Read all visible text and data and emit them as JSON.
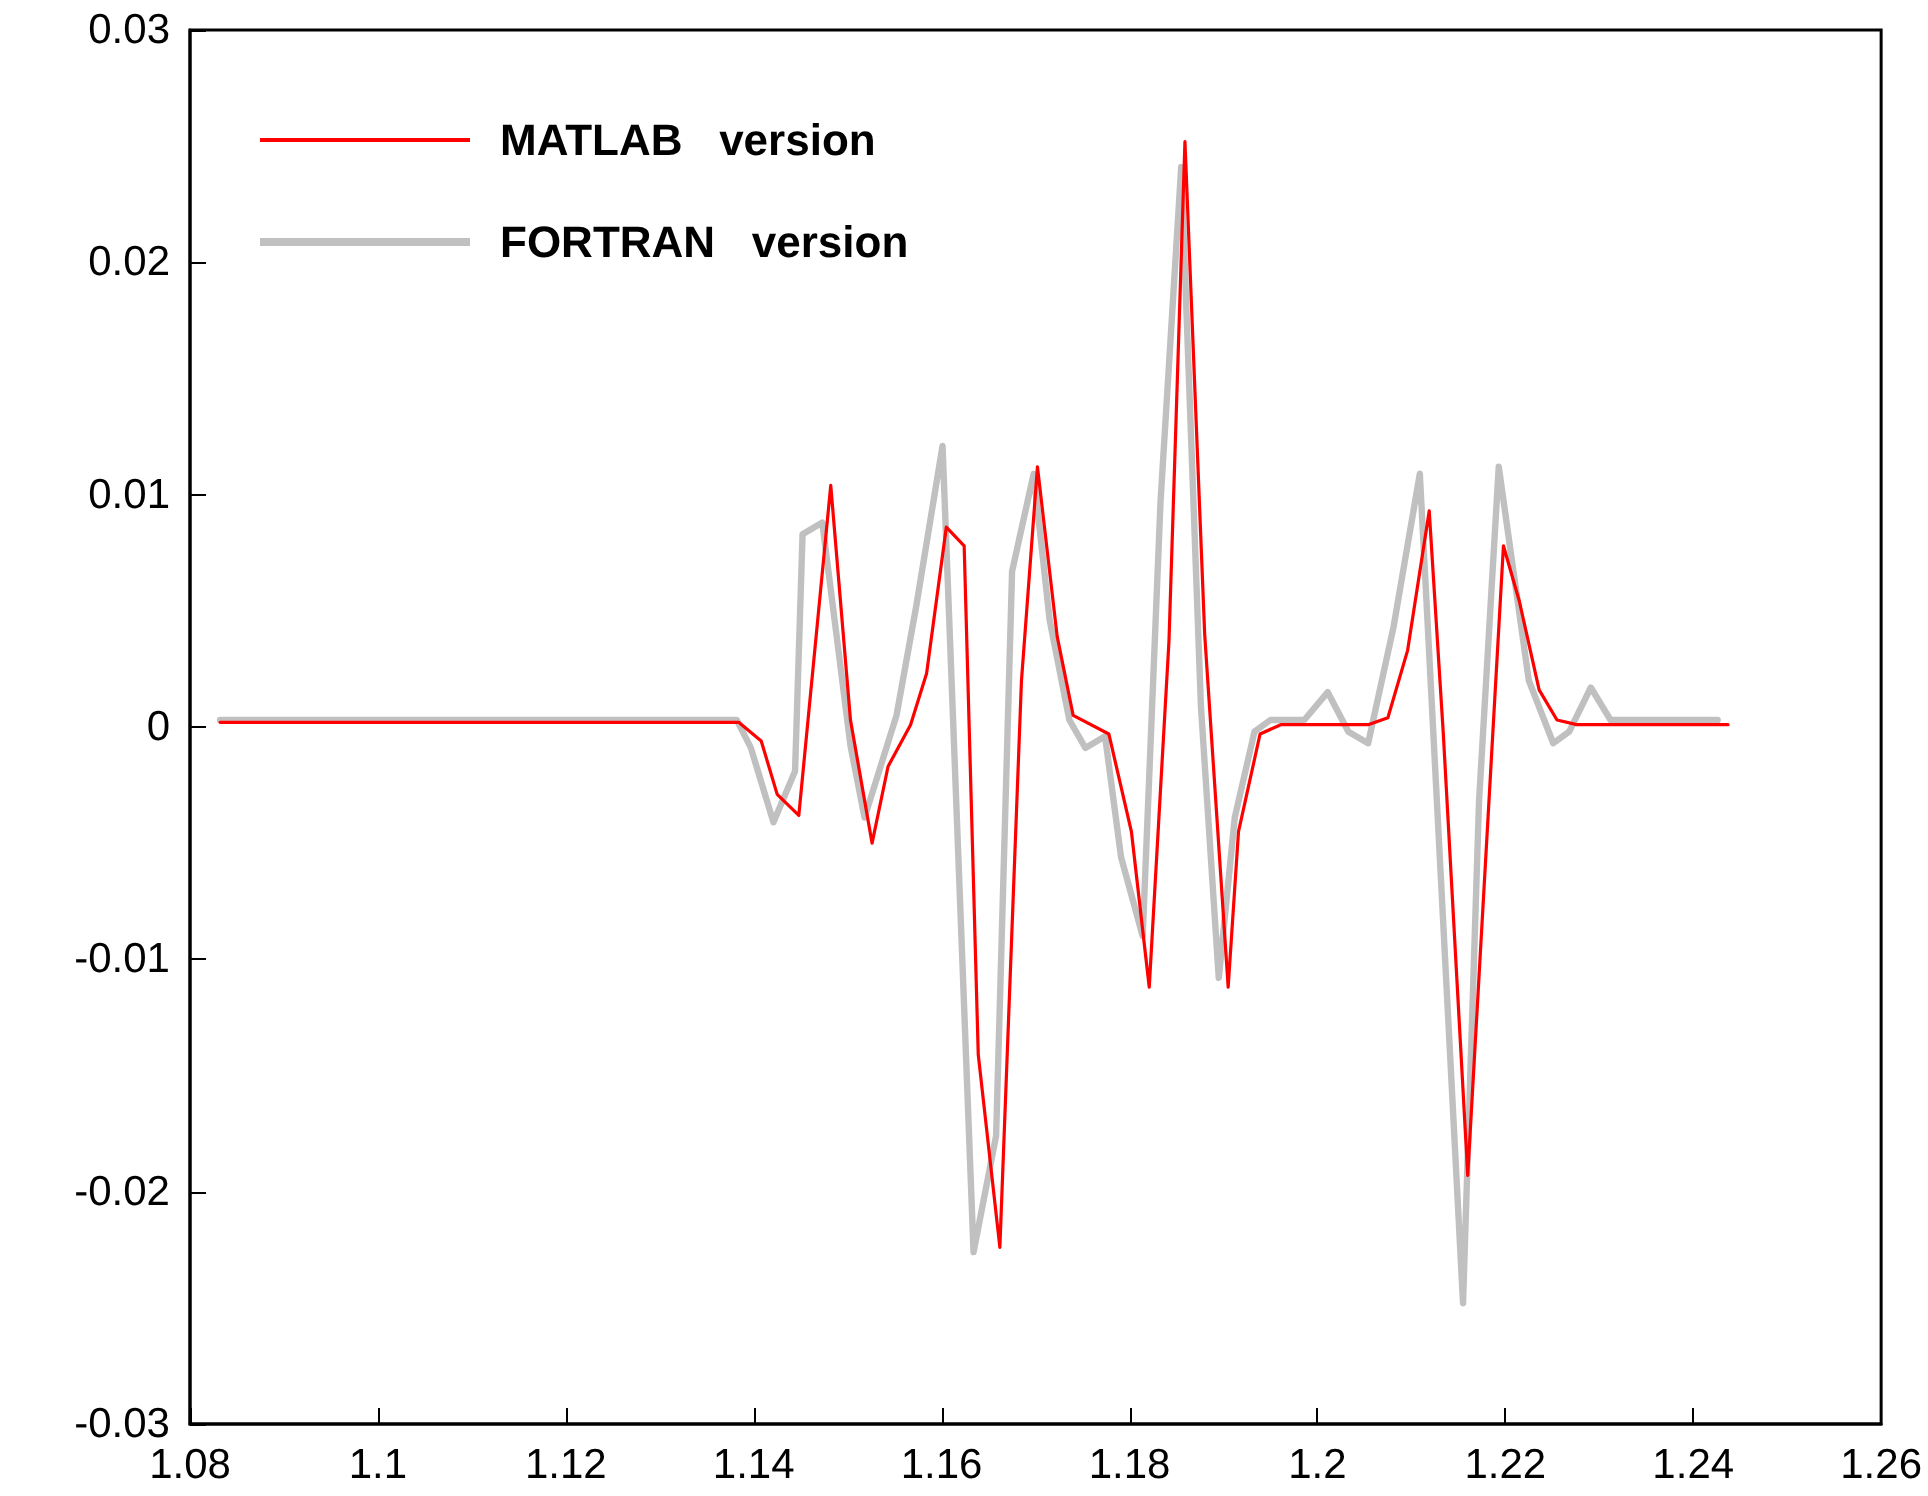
{
  "chart_data": {
    "type": "line",
    "marker": "none",
    "legend": "top left",
    "grid": false,
    "xlim": [
      1.08,
      1.26
    ],
    "xticks": [
      1.08,
      1.1,
      1.12,
      1.14,
      1.16,
      1.18,
      1.2,
      1.22,
      1.24,
      1.26
    ],
    "ylim": [
      -0.03,
      0.03
    ],
    "yticks": [
      -0.03,
      -0.02,
      -0.01,
      0,
      0.01,
      0.02,
      0.03
    ],
    "series": [
      {
        "name": "MATLAB   version",
        "color": "#ff0000",
        "x": [
          1.0832,
          1.1384,
          1.1408,
          1.1425,
          1.1448,
          1.1482,
          1.1503,
          1.1526,
          1.1543,
          1.1567,
          1.1584,
          1.1605,
          1.1624,
          1.1639,
          1.1662,
          1.1685,
          1.1702,
          1.1723,
          1.174,
          1.1778,
          1.1802,
          1.1821,
          1.1842,
          1.1859,
          1.188,
          1.1905,
          1.1916,
          1.1939,
          1.1961,
          1.2054,
          1.2075,
          1.2096,
          1.2119,
          1.2134,
          1.216,
          1.2198,
          1.2215,
          1.2236,
          1.2255,
          1.2276,
          1.2437
        ],
        "values": [
          0.0002,
          0.0002,
          -0.0006,
          -0.0029,
          -0.0038,
          0.0104,
          0.0003,
          -0.005,
          -0.0017,
          0.0001,
          0.0023,
          0.0086,
          0.0078,
          -0.0141,
          -0.0224,
          0.002,
          0.0112,
          0.0039,
          0.0005,
          -0.0003,
          -0.0045,
          -0.0112,
          0.0037,
          0.0252,
          0.004,
          -0.0112,
          -0.0045,
          -0.0003,
          0.0001,
          0.0001,
          0.0004,
          0.0033,
          0.0093,
          -0.0003,
          -0.0193,
          0.0078,
          0.0054,
          0.0016,
          0.0003,
          0.0001,
          0.0001
        ]
      },
      {
        "name": "FORTRAN   version",
        "color": "#c0c0c0",
        "x": [
          1.0832,
          1.1382,
          1.1397,
          1.1421,
          1.1444,
          1.1452,
          1.1473,
          1.1503,
          1.1518,
          1.1552,
          1.1573,
          1.1601,
          1.1634,
          1.1658,
          1.1675,
          1.1698,
          1.1715,
          1.1736,
          1.1753,
          1.1774,
          1.1791,
          1.1814,
          1.1833,
          1.1855,
          1.1876,
          1.1895,
          1.1912,
          1.1933,
          1.195,
          1.1986,
          1.2011,
          1.2033,
          1.2054,
          1.2081,
          1.2109,
          1.2155,
          1.2172,
          1.2193,
          1.2225,
          1.2251,
          1.2268,
          1.2291,
          1.2312,
          1.2426
        ],
        "values": [
          0.0003,
          0.0003,
          -0.0009,
          -0.0041,
          -0.0019,
          0.0083,
          0.0088,
          -0.0008,
          -0.0039,
          0.0005,
          0.0052,
          0.0121,
          -0.0226,
          -0.0176,
          0.0067,
          0.0109,
          0.0046,
          0.0003,
          -0.0009,
          -0.0004,
          -0.0056,
          -0.009,
          0.0097,
          0.0241,
          0.0009,
          -0.0108,
          -0.0039,
          -0.0002,
          0.0003,
          0.0003,
          0.0015,
          -0.0002,
          -0.0007,
          0.0043,
          0.0109,
          -0.0248,
          -0.0032,
          0.0112,
          0.002,
          -0.0007,
          -0.0002,
          0.0017,
          0.0003,
          0.0003
        ]
      }
    ]
  }
}
